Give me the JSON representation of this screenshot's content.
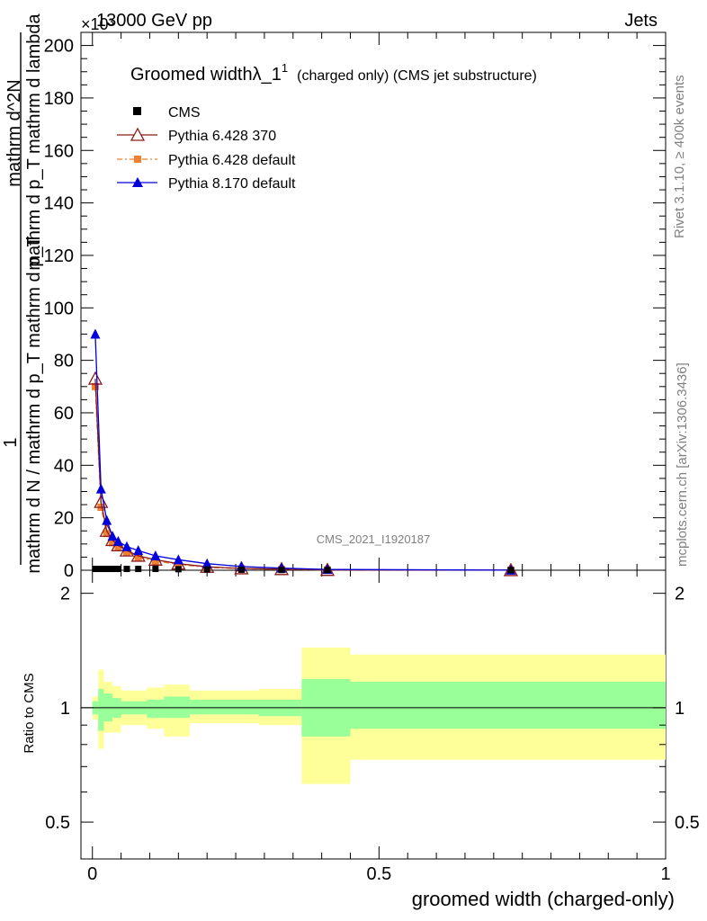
{
  "header": {
    "energy": "13000 GeV pp",
    "process": "Jets",
    "exponent_label": "×10³"
  },
  "side": {
    "rivet": "Rivet 3.1.10, ≥ 400k events",
    "mcplots": "mcplots.cern.ch [arXiv:1306.3436]"
  },
  "chart_data": [
    {
      "type": "line",
      "title": "Groomed width",
      "title_lambda": "λ_1",
      "title_sup": "1",
      "title_suffix": "(charged only) (CMS jet substructure)",
      "analysis_id": "CMS_2021_I1920187",
      "ylabel_numerator_one": "1",
      "ylabel_denominator": "mathrm d N / mathrm d p_T mathrm d p_T",
      "ylabel_numerator": "mathrm d^2N",
      "ylabel_right": "mathrm d p_T mathrm d lambda",
      "ylim": [
        0,
        205
      ],
      "y_scale": "×10³",
      "xlim": [
        -0.02,
        1.0
      ],
      "y_ticks": [
        "0",
        "20",
        "40",
        "60",
        "80",
        "100",
        "120",
        "140",
        "160",
        "180",
        "200"
      ],
      "legend": [
        {
          "name": "CMS",
          "color": "#000000",
          "marker": "square"
        },
        {
          "name": "Pythia 6.428 370",
          "color": "#8b1a1a",
          "marker": "open-triangle"
        },
        {
          "name": "Pythia 6.428 default",
          "color": "#f08030",
          "marker": "square"
        },
        {
          "name": "Pythia 8.170 default",
          "color": "#0000dd",
          "marker": "triangle"
        }
      ],
      "x": [
        0.005,
        0.015,
        0.025,
        0.035,
        0.045,
        0.06,
        0.08,
        0.11,
        0.15,
        0.2,
        0.26,
        0.33,
        0.41,
        0.73
      ],
      "series": [
        {
          "name": "CMS",
          "values": [
            0.5,
            0.5,
            0.5,
            0.5,
            0.5,
            0.5,
            0.5,
            0.5,
            0.4,
            0.3,
            0.2,
            0.1,
            0.05,
            0.02
          ]
        },
        {
          "name": "Pythia 6.428 370",
          "values": [
            73,
            26,
            15,
            11.5,
            9.5,
            7.5,
            5.5,
            4,
            2.5,
            1.3,
            0.7,
            0.4,
            0.1,
            0.02
          ]
        },
        {
          "name": "Pythia 6.428 default",
          "values": [
            70,
            24,
            14,
            10.5,
            9,
            7,
            5,
            3.5,
            2.2,
            1.1,
            0.6,
            0.3,
            0.1,
            0.02
          ]
        },
        {
          "name": "Pythia 8.170 default",
          "values": [
            90,
            31,
            19,
            13,
            11,
            9,
            7.5,
            5.5,
            4,
            2.5,
            1.4,
            0.8,
            0.3,
            0.05
          ]
        }
      ]
    },
    {
      "type": "area",
      "ylabel": "Ratio to CMS",
      "xlabel": "groomed width (charged-only)",
      "ylim": [
        0.4,
        2.3
      ],
      "y_ticks": [
        "0.5",
        "1",
        "2"
      ],
      "x_ticks": [
        "0",
        "0.5",
        "1"
      ],
      "bins": [
        {
          "x0": 0.0,
          "x1": 0.01,
          "stat_lo": 0.96,
          "stat_hi": 1.04,
          "tot_lo": 0.93,
          "tot_hi": 1.07
        },
        {
          "x0": 0.01,
          "x1": 0.02,
          "stat_lo": 0.87,
          "stat_hi": 1.12,
          "tot_lo": 0.78,
          "tot_hi": 1.26
        },
        {
          "x0": 0.02,
          "x1": 0.035,
          "stat_lo": 0.92,
          "stat_hi": 1.09,
          "tot_lo": 0.86,
          "tot_hi": 1.17
        },
        {
          "x0": 0.035,
          "x1": 0.05,
          "stat_lo": 0.94,
          "stat_hi": 1.06,
          "tot_lo": 0.86,
          "tot_hi": 1.14
        },
        {
          "x0": 0.05,
          "x1": 0.095,
          "stat_lo": 0.96,
          "stat_hi": 1.04,
          "tot_lo": 0.9,
          "tot_hi": 1.11
        },
        {
          "x0": 0.095,
          "x1": 0.125,
          "stat_lo": 0.94,
          "stat_hi": 1.05,
          "tot_lo": 0.88,
          "tot_hi": 1.13
        },
        {
          "x0": 0.125,
          "x1": 0.17,
          "stat_lo": 0.94,
          "stat_hi": 1.07,
          "tot_lo": 0.84,
          "tot_hi": 1.15
        },
        {
          "x0": 0.17,
          "x1": 0.29,
          "stat_lo": 0.96,
          "stat_hi": 1.05,
          "tot_lo": 0.91,
          "tot_hi": 1.11
        },
        {
          "x0": 0.29,
          "x1": 0.365,
          "stat_lo": 0.95,
          "stat_hi": 1.05,
          "tot_lo": 0.9,
          "tot_hi": 1.12
        },
        {
          "x0": 0.365,
          "x1": 0.45,
          "stat_lo": 0.84,
          "stat_hi": 1.19,
          "tot_lo": 0.63,
          "tot_hi": 1.44
        },
        {
          "x0": 0.45,
          "x1": 1.0,
          "stat_lo": 0.88,
          "stat_hi": 1.17,
          "tot_lo": 0.73,
          "tot_hi": 1.38
        }
      ],
      "colors": {
        "stat": "#99ff99",
        "total": "#ffff99",
        "line": "#000000"
      }
    }
  ]
}
